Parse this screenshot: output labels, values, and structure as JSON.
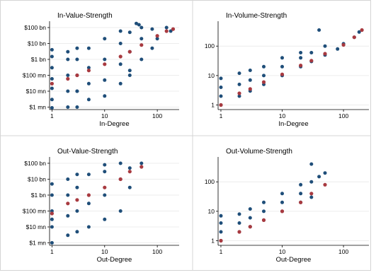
{
  "chart_data": [
    {
      "type": "scatter",
      "title": "In-Value-Strength",
      "xlabel": "In-Degree",
      "ylabel": "",
      "xscale": "log",
      "yscale": "log",
      "xlim": [
        0.9,
        260
      ],
      "ylim": [
        0.7,
        250000
      ],
      "xticks": [
        {
          "v": 1,
          "label": "1"
        },
        {
          "v": 10,
          "label": "10"
        },
        {
          "v": 100,
          "label": "100"
        }
      ],
      "yticks": [
        {
          "v": 1,
          "label": "$1 mn"
        },
        {
          "v": 10,
          "label": "$10 mn"
        },
        {
          "v": 100,
          "label": "$100 mn"
        },
        {
          "v": 1000,
          "label": "$1 bn"
        },
        {
          "v": 10000,
          "label": "$10 bn"
        },
        {
          "v": 100000,
          "label": "$100 bn"
        }
      ],
      "series": [
        {
          "role": "observations",
          "color": "#1f4e79",
          "x": [
            1,
            1,
            1,
            1,
            1,
            1,
            1,
            2,
            2,
            2,
            2,
            2,
            3,
            3,
            3,
            3,
            3,
            3,
            5,
            5,
            5,
            5,
            10,
            10,
            10,
            10,
            20,
            20,
            20,
            20,
            30,
            30,
            30,
            30,
            50,
            50,
            50,
            80,
            80,
            100,
            150,
            180,
            40,
            45
          ],
          "y": [
            0.9,
            3,
            15,
            60,
            300,
            1500,
            4000,
            1,
            10,
            100,
            1000,
            3000,
            1,
            10,
            100,
            1000,
            5000,
            10,
            3,
            30,
            300,
            5000,
            5,
            50,
            1000,
            20000,
            30,
            500,
            10000,
            60000,
            100,
            3000,
            50000,
            200,
            1000,
            20000,
            100000,
            5000,
            80000,
            20000,
            100000,
            60000,
            180000,
            150000
          ]
        },
        {
          "role": "average",
          "color": "#a83a40",
          "x": [
            1,
            2,
            3,
            5,
            10,
            20,
            30,
            50,
            100,
            150,
            200
          ],
          "y": [
            30,
            60,
            100,
            200,
            500,
            1500,
            3000,
            8000,
            30000,
            60000,
            80000
          ]
        }
      ]
    },
    {
      "type": "scatter",
      "title": "In-Volume-Strength",
      "xlabel": "In-Degree",
      "ylabel": "",
      "xscale": "log",
      "yscale": "log",
      "xlim": [
        0.9,
        260
      ],
      "ylim": [
        0.7,
        700
      ],
      "xticks": [
        {
          "v": 1,
          "label": "1"
        },
        {
          "v": 10,
          "label": "10"
        },
        {
          "v": 100,
          "label": "100"
        }
      ],
      "yticks": [
        {
          "v": 1,
          "label": "1"
        },
        {
          "v": 10,
          "label": "10"
        },
        {
          "v": 100,
          "label": "100"
        }
      ],
      "series": [
        {
          "role": "observations",
          "color": "#1f4e79",
          "x": [
            1,
            1,
            1,
            1,
            2,
            2,
            2,
            3,
            3,
            3,
            5,
            5,
            5,
            10,
            10,
            10,
            20,
            20,
            20,
            30,
            30,
            50,
            50,
            80,
            100,
            150,
            180,
            40
          ],
          "y": [
            1,
            2,
            4,
            8,
            2,
            5,
            12,
            3,
            7,
            15,
            5,
            10,
            20,
            10,
            20,
            40,
            20,
            40,
            60,
            30,
            60,
            50,
            100,
            80,
            120,
            200,
            300,
            350
          ]
        },
        {
          "role": "average",
          "color": "#a83a40",
          "x": [
            1,
            2,
            3,
            5,
            10,
            20,
            30,
            50,
            100,
            150,
            200
          ],
          "y": [
            1,
            2.5,
            3.5,
            6,
            11,
            22,
            32,
            55,
            110,
            200,
            350
          ]
        }
      ]
    },
    {
      "type": "scatter",
      "title": "Out-Value-Strength",
      "xlabel": "Out-Degree",
      "ylabel": "",
      "xscale": "log",
      "yscale": "log",
      "xlim": [
        0.9,
        260
      ],
      "ylim": [
        0.7,
        250000
      ],
      "xticks": [
        {
          "v": 1,
          "label": "1"
        },
        {
          "v": 10,
          "label": "10"
        },
        {
          "v": 100,
          "label": "100"
        }
      ],
      "yticks": [
        {
          "v": 1,
          "label": "$1 mn"
        },
        {
          "v": 10,
          "label": "$10 mn"
        },
        {
          "v": 100,
          "label": "$100 mn"
        },
        {
          "v": 1000,
          "label": "$1 bn"
        },
        {
          "v": 10000,
          "label": "$10 bn"
        },
        {
          "v": 100000,
          "label": "$100 bn"
        }
      ],
      "series": [
        {
          "role": "observations",
          "color": "#1f4e79",
          "x": [
            1,
            1,
            1,
            1,
            1,
            1,
            2,
            2,
            2,
            2,
            3,
            3,
            3,
            3,
            5,
            5,
            5,
            10,
            10,
            10,
            10,
            20,
            20,
            20,
            30,
            30,
            50
          ],
          "y": [
            1,
            10,
            100,
            1000,
            5000,
            30,
            3,
            50,
            1000,
            10000,
            5,
            100,
            3000,
            20000,
            10,
            300,
            20000,
            30,
            1000,
            30000,
            80000,
            100,
            10000,
            100000,
            3000,
            50000,
            100000
          ]
        },
        {
          "role": "average",
          "color": "#a83a40",
          "x": [
            1,
            2,
            3,
            5,
            10,
            20,
            30,
            50
          ],
          "y": [
            70,
            300,
            500,
            1000,
            3000,
            10000,
            30000,
            60000
          ]
        }
      ]
    },
    {
      "type": "scatter",
      "title": "Out-Volume-Strength",
      "xlabel": "Out-Degree",
      "ylabel": "",
      "xscale": "log",
      "yscale": "log",
      "xlim": [
        0.9,
        260
      ],
      "ylim": [
        0.7,
        700
      ],
      "xticks": [
        {
          "v": 1,
          "label": "1"
        },
        {
          "v": 10,
          "label": "10"
        },
        {
          "v": 100,
          "label": "100"
        }
      ],
      "yticks": [
        {
          "v": 1,
          "label": "1"
        },
        {
          "v": 10,
          "label": "10"
        },
        {
          "v": 100,
          "label": "100"
        }
      ],
      "series": [
        {
          "role": "observations",
          "color": "#1f4e79",
          "x": [
            1,
            1,
            1,
            1,
            2,
            2,
            2,
            3,
            3,
            3,
            5,
            5,
            5,
            10,
            10,
            10,
            20,
            20,
            20,
            30,
            30,
            40,
            50,
            30
          ],
          "y": [
            1,
            2,
            4,
            7,
            2,
            4,
            8,
            3,
            6,
            12,
            5,
            10,
            20,
            10,
            20,
            40,
            20,
            40,
            80,
            30,
            100,
            150,
            200,
            400
          ]
        },
        {
          "role": "average",
          "color": "#a83a40",
          "x": [
            1,
            2,
            3,
            5,
            10,
            20,
            30,
            50
          ],
          "y": [
            1,
            2,
            3,
            5,
            10,
            20,
            40,
            80
          ]
        }
      ]
    }
  ]
}
